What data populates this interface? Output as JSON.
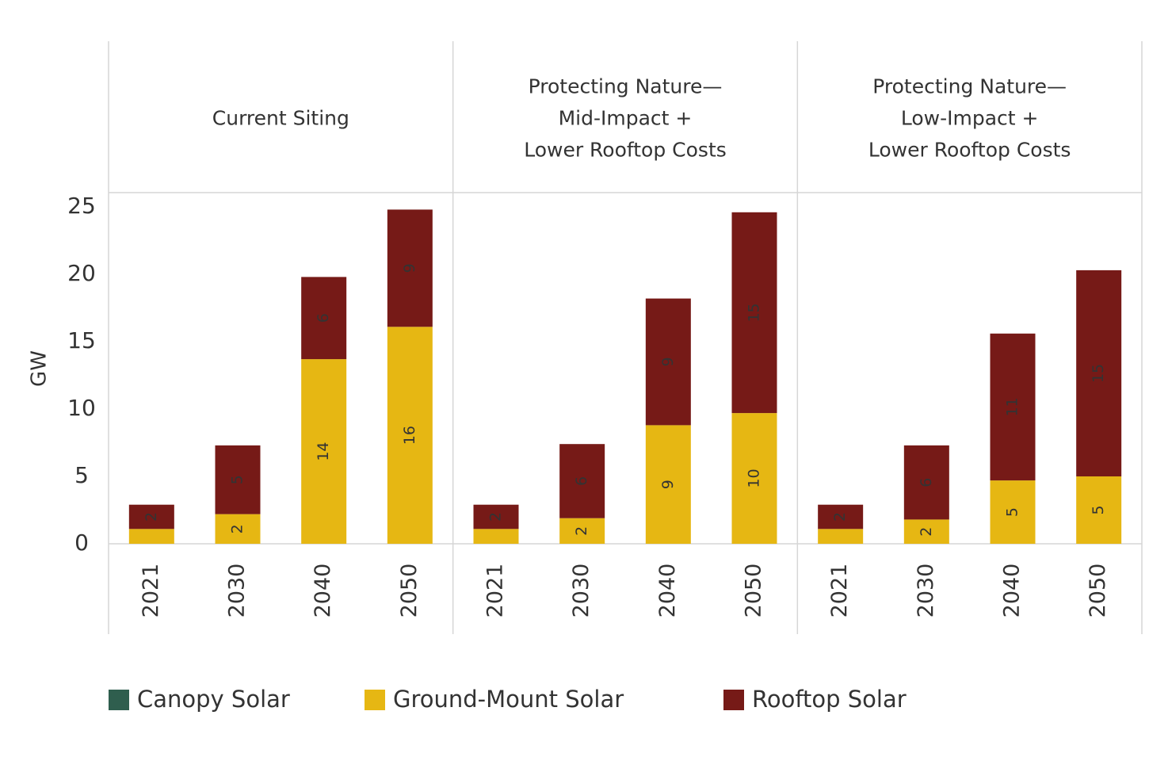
{
  "chart_data": {
    "type": "bar",
    "stacked": true,
    "ylabel": "GW",
    "ylim": [
      0,
      25
    ],
    "yticks": [
      0,
      5,
      10,
      15,
      20,
      25
    ],
    "legend": [
      {
        "name": "Canopy Solar",
        "color": "#2f5e4e"
      },
      {
        "name": "Ground-Mount Solar",
        "color": "#e6b713"
      },
      {
        "name": "Rooftop Solar",
        "color": "#761a17"
      }
    ],
    "panels": [
      {
        "title": [
          "Current Siting"
        ],
        "categories": [
          "2021",
          "2030",
          "2040",
          "2050"
        ],
        "series": [
          {
            "values": [
              0,
              0,
              0,
              0
            ],
            "value_labels": [
              null,
              null,
              null,
              null
            ]
          },
          {
            "values": [
              1.1,
              2.2,
              13.7,
              16.1
            ],
            "value_labels": [
              null,
              "2",
              "14",
              "16"
            ]
          },
          {
            "values": [
              1.8,
              5.1,
              6.1,
              8.7
            ],
            "value_labels": [
              "2",
              "5",
              "6",
              "9"
            ]
          }
        ]
      },
      {
        "title": [
          "Protecting Nature—",
          "Mid-Impact +",
          "Lower Rooftop Costs"
        ],
        "categories": [
          "2021",
          "2030",
          "2040",
          "2050"
        ],
        "series": [
          {
            "values": [
              0,
              0,
              0,
              0
            ],
            "value_labels": [
              null,
              null,
              null,
              null
            ]
          },
          {
            "values": [
              1.1,
              1.9,
              8.8,
              9.7
            ],
            "value_labels": [
              null,
              "2",
              "9",
              "10"
            ]
          },
          {
            "values": [
              1.8,
              5.5,
              9.4,
              14.9
            ],
            "value_labels": [
              "2",
              "6",
              "9",
              "15"
            ]
          }
        ]
      },
      {
        "title": [
          "Protecting Nature—",
          "Low-Impact +",
          "Lower Rooftop Costs"
        ],
        "categories": [
          "2021",
          "2030",
          "2040",
          "2050"
        ],
        "series": [
          {
            "values": [
              0,
              0,
              0,
              0
            ],
            "value_labels": [
              null,
              null,
              null,
              null
            ]
          },
          {
            "values": [
              1.1,
              1.8,
              4.7,
              5.0
            ],
            "value_labels": [
              null,
              "2",
              "5",
              "5"
            ]
          },
          {
            "values": [
              1.8,
              5.5,
              10.9,
              15.3
            ],
            "value_labels": [
              "2",
              "6",
              "11",
              "15"
            ]
          }
        ]
      }
    ]
  }
}
